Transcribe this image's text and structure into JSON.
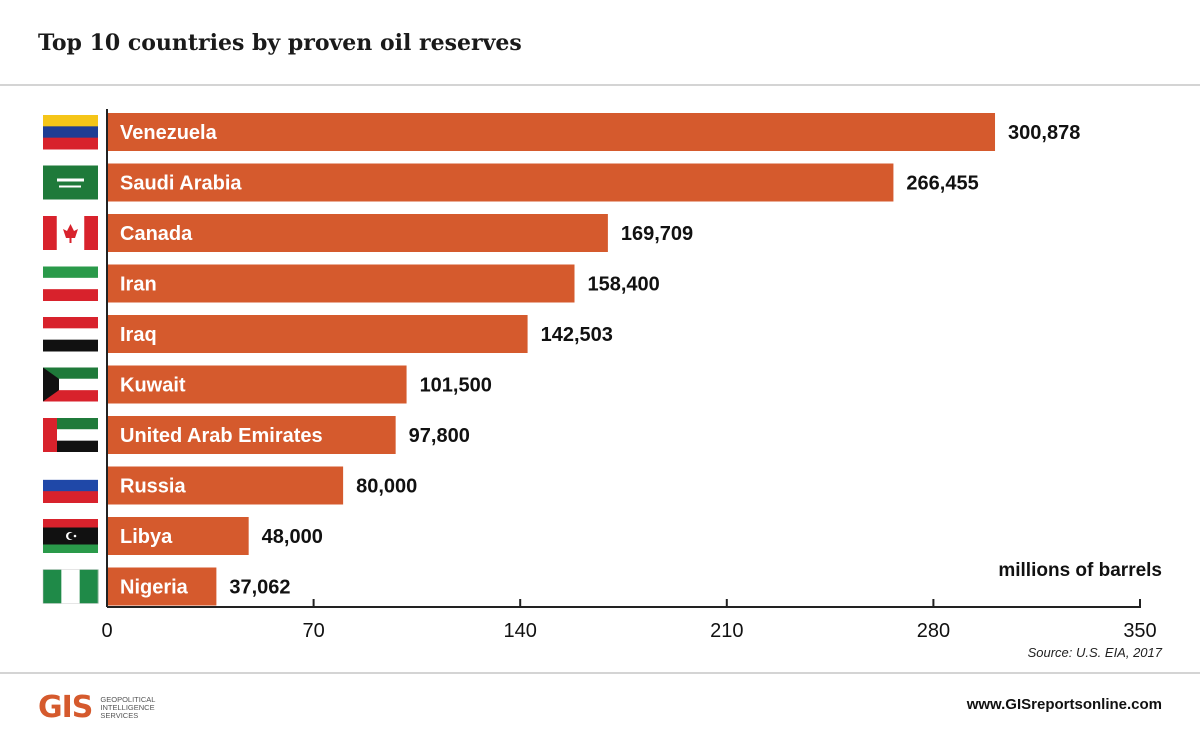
{
  "title": "Top 10 countries by proven oil reserves",
  "chart_data": {
    "type": "bar",
    "orientation": "horizontal",
    "categories": [
      "Venezuela",
      "Saudi Arabia",
      "Canada",
      "Iran",
      "Iraq",
      "Kuwait",
      "United Arab Emirates",
      "Russia",
      "Libya",
      "Nigeria"
    ],
    "values": [
      300878,
      266455,
      169709,
      158400,
      142503,
      101500,
      97800,
      80000,
      48000,
      37062
    ],
    "value_labels": [
      "300,878",
      "266,455",
      "169,709",
      "158,400",
      "142,503",
      "101,500",
      "97,800",
      "80,000",
      "48,000",
      "37,062"
    ],
    "xlim": [
      0,
      350000
    ],
    "xticks": [
      0,
      70000,
      140000,
      210000,
      280000,
      350000
    ],
    "xtick_labels": [
      "0",
      "70",
      "140",
      "210",
      "280",
      "350"
    ],
    "unit_label": "millions of barrels",
    "bar_color": "#d55a2d"
  },
  "flags": [
    {
      "country": "Venezuela",
      "icon": "venezuela-flag-icon",
      "stripes": [
        "#f5c518",
        "#1f3d94",
        "#d8222c"
      ],
      "layout": "h3"
    },
    {
      "country": "Saudi Arabia",
      "icon": "saudi-arabia-flag-icon",
      "stripes": [
        "#1f7a3a"
      ],
      "layout": "plain"
    },
    {
      "country": "Canada",
      "icon": "canada-flag-icon",
      "stripes": [
        "#d8222c",
        "#ffffff",
        "#d8222c"
      ],
      "layout": "v3canada"
    },
    {
      "country": "Iran",
      "icon": "iran-flag-icon",
      "stripes": [
        "#2a9a4a",
        "#ffffff",
        "#d8222c"
      ],
      "layout": "h3"
    },
    {
      "country": "Iraq",
      "icon": "iraq-flag-icon",
      "stripes": [
        "#d8222c",
        "#ffffff",
        "#111111"
      ],
      "layout": "h3"
    },
    {
      "country": "Kuwait",
      "icon": "kuwait-flag-icon",
      "stripes": [
        "#1f7a3a",
        "#ffffff",
        "#d8222c",
        "#111111"
      ],
      "layout": "kuwait"
    },
    {
      "country": "United Arab Emirates",
      "icon": "uae-flag-icon",
      "stripes": [
        "#1f7a3a",
        "#ffffff",
        "#111111",
        "#d8222c"
      ],
      "layout": "uae"
    },
    {
      "country": "Russia",
      "icon": "russia-flag-icon",
      "stripes": [
        "#ffffff",
        "#1f48a8",
        "#d8222c"
      ],
      "layout": "h3"
    },
    {
      "country": "Libya",
      "icon": "libya-flag-icon",
      "stripes": [
        "#d8222c",
        "#111111",
        "#2a9a4a"
      ],
      "layout": "libya"
    },
    {
      "country": "Nigeria",
      "icon": "nigeria-flag-icon",
      "stripes": [
        "#1f8a48",
        "#ffffff",
        "#1f8a48"
      ],
      "layout": "v3"
    }
  ],
  "source": "Source: U.S. EIA, 2017",
  "footer": {
    "logo_text": "GIS",
    "logo_subtext": "Geopolitical Intelligence Services",
    "website": "www.GISreportsonline.com"
  }
}
